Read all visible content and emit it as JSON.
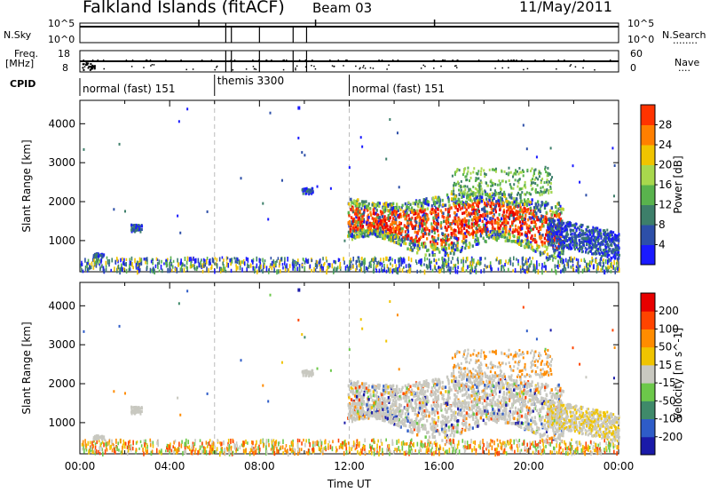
{
  "header": {
    "station": "Falkland Islands (fitACF)",
    "beam": "Beam 03",
    "date": "11/May/2011"
  },
  "side_labels": {
    "nsky": "N.Sky",
    "freq_line1": "Freq.",
    "freq_line2": "[MHz]",
    "cpid": "CPID",
    "nsearch": "N.Search",
    "nave": "Nave",
    "nsearch_dots": "........",
    "nave_dots": "...."
  },
  "status_axes": {
    "noise_left_top": "10^5",
    "noise_left_bottom": "10^0",
    "noise_right_top": "10^5",
    "noise_right_bottom": "10^0",
    "freq_left_top": "18",
    "freq_left_bottom": "8",
    "nave_right_top": "60",
    "nave_right_bottom": "0"
  },
  "cpid_segments": [
    {
      "label": "normal (fast) 151",
      "start_hour": 0,
      "end_hour": 6
    },
    {
      "label": "themis 3300",
      "start_hour": 6,
      "end_hour": 12
    },
    {
      "label": "normal (fast) 151",
      "start_hour": 12,
      "end_hour": 24
    }
  ],
  "chart_data": [
    {
      "type": "heatmap",
      "name": "power",
      "ylabel": "Slant Range [km]",
      "ylim": [
        200,
        4600
      ],
      "yticks": [
        "1000",
        "2000",
        "3000",
        "4000"
      ],
      "xlim_hours": [
        0,
        24
      ],
      "colorbar_label": "Power [dB]",
      "colorbar_ticks": [
        "4",
        "8",
        "12",
        "16",
        "20",
        "24",
        "28"
      ],
      "colorbar_range": [
        0,
        32
      ],
      "colors": [
        "#1a1aff",
        "#2d4fa8",
        "#3d7f6a",
        "#59b34d",
        "#a8d84d",
        "#f0c400",
        "#ff7f00",
        "#ff3300",
        "#e80000"
      ]
    },
    {
      "type": "heatmap",
      "name": "velocity",
      "ylabel": "Slant Range [km]",
      "ylim": [
        200,
        4600
      ],
      "yticks": [
        "1000",
        "2000",
        "3000",
        "4000"
      ],
      "xlim_hours": [
        0,
        24
      ],
      "xticks": [
        "00:00",
        "04:00",
        "08:00",
        "12:00",
        "16:00",
        "20:00",
        "00:00"
      ],
      "xlabel": "Time UT",
      "colorbar_label": "Velocity [m s^-1]",
      "colorbar_ticks": [
        "200",
        "100",
        "50",
        "15",
        "-15",
        "-50",
        "-100",
        "-200"
      ],
      "colors": [
        "#1a1aa8",
        "#2e5cc8",
        "#3f8a6a",
        "#6cc84a",
        "#c8c8c0",
        "#f0c400",
        "#ff8c00",
        "#ff4400",
        "#e80000"
      ]
    }
  ]
}
